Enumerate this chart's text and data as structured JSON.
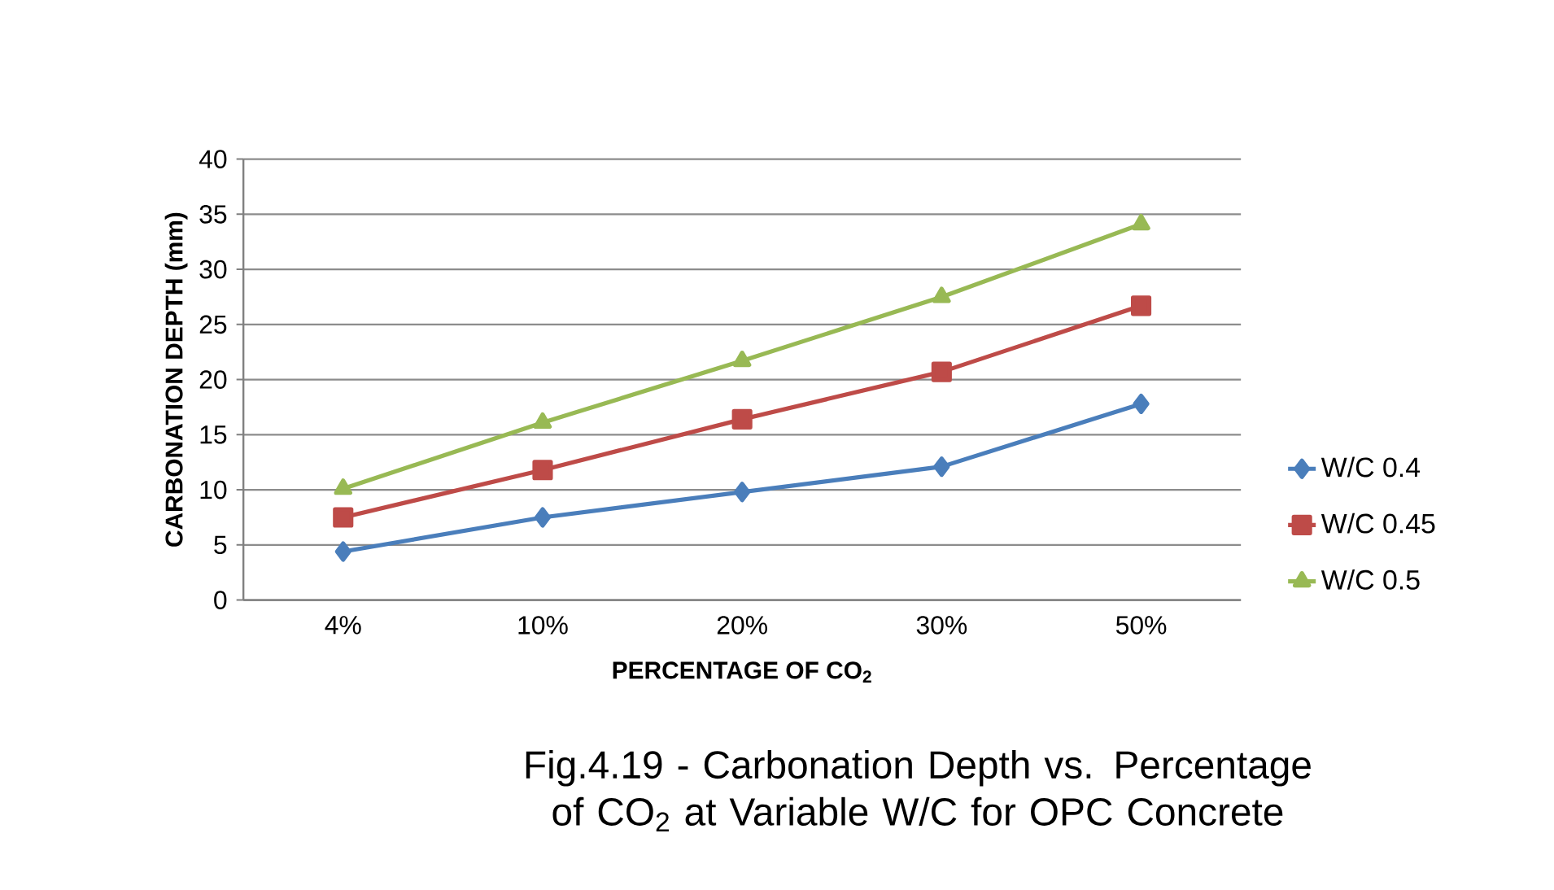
{
  "chart_data": {
    "type": "line",
    "title": "Fig.4.19 - Carbonation Depth vs. Percentage of CO$_{2}$ at Variable W/C for OPC Concrete",
    "xlabel": "PERCENTAGE OF CO$_{2}$",
    "ylabel": "CARBONATION DEPTH (mm)",
    "categories": [
      "4%",
      "10%",
      "20%",
      "30%",
      "50%"
    ],
    "series": [
      {
        "name": "W/C 0.4",
        "color": "#4a7ebb",
        "marker": "diamond",
        "values": [
          4.4,
          7.5,
          9.8,
          12.1,
          17.8
        ]
      },
      {
        "name": "W/C 0.45",
        "color": "#be4b48",
        "marker": "square",
        "values": [
          7.5,
          11.8,
          16.4,
          20.7,
          26.7
        ]
      },
      {
        "name": "W/C 0.5",
        "color": "#98b954",
        "marker": "triangle",
        "values": [
          10.1,
          16.1,
          21.7,
          27.5,
          34.1
        ]
      }
    ],
    "ylim": [
      0,
      40
    ],
    "yticks": [
      0,
      5,
      10,
      15,
      20,
      25,
      30,
      35,
      40
    ],
    "grid": "y",
    "legend": "right",
    "line_style": "solid"
  }
}
